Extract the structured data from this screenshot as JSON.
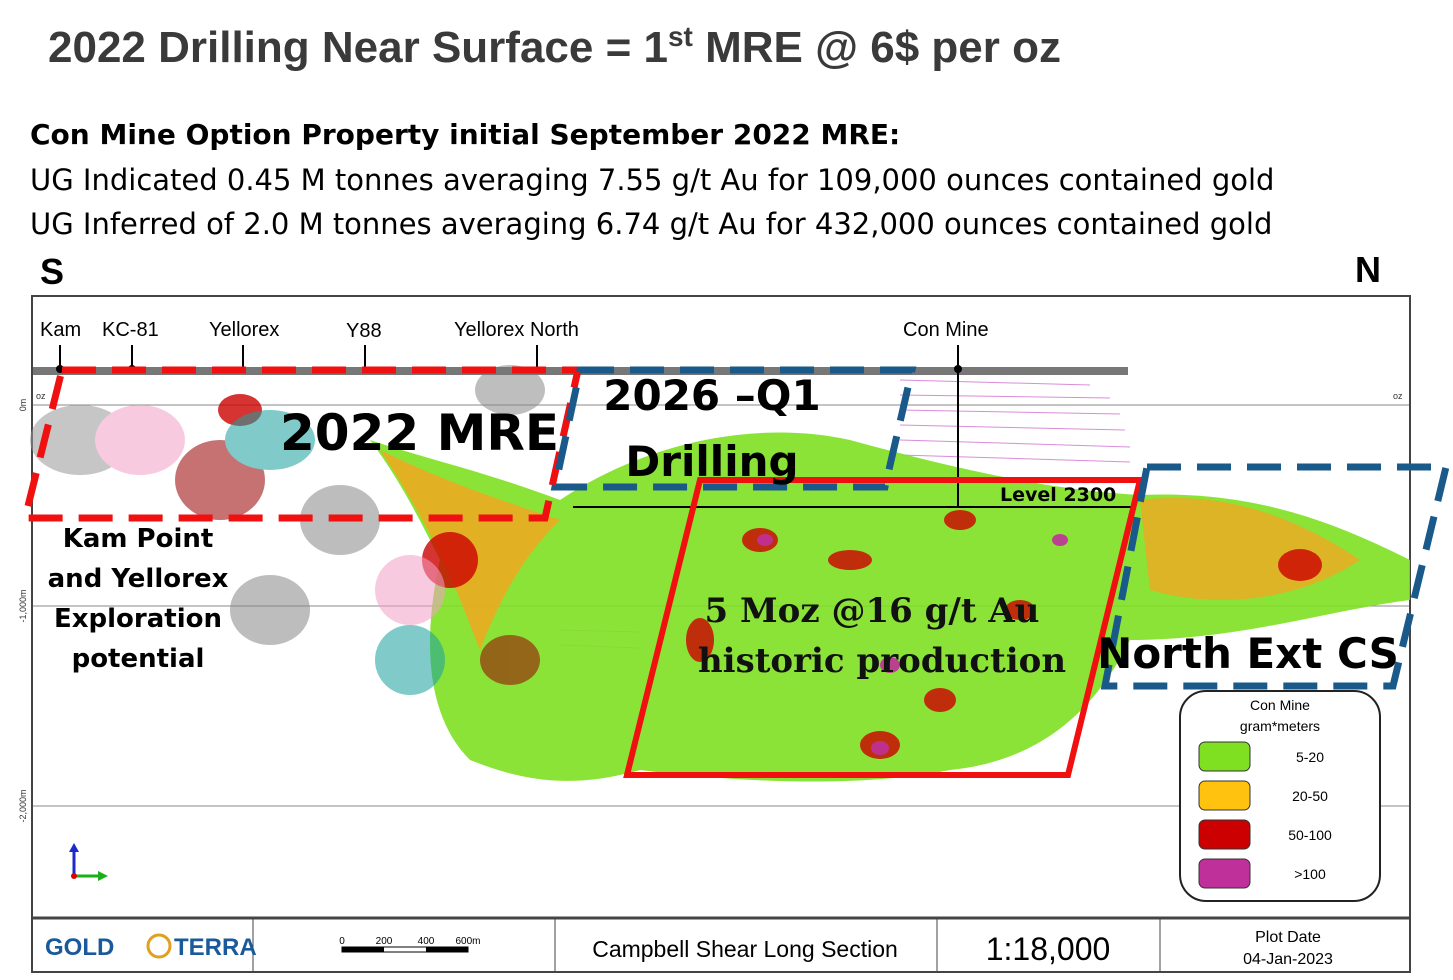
{
  "header": {
    "title": [
      "2022 Drilling Near Surface = 1",
      "st",
      " MRE @ 6$ per oz"
    ],
    "summary_heading": "Con Mine Option Property initial September 2022 MRE:",
    "summary_lines": [
      "UG Indicated 0.45 M tonnes averaging 7.55 g/t Au for 109,000 ounces contained gold",
      "UG Inferred of 2.0 M tonnes averaging 6.74 g/t Au for 432,000 ounces contained gold"
    ]
  },
  "section": {
    "compass_left": "S",
    "compass_right": "N",
    "locations": [
      "Kam",
      "KC-81",
      "Yellorex",
      "Y88",
      "Yellorex North",
      "Con Mine"
    ],
    "depth_labels": [
      "0m",
      "-1,000m",
      "-2,000m"
    ],
    "unit_labels": [
      "oz",
      "oz"
    ],
    "annotations": {
      "mre_2022": "2022 MRE",
      "drilling_2026": [
        "2026 –Q1",
        "Drilling"
      ],
      "level": "Level 2300",
      "exploration": [
        "Kam Point",
        "and Yellorex",
        "Exploration",
        "potential"
      ],
      "historic": [
        "5 Moz @16 g/t Au",
        "historic production"
      ],
      "north_ext": "North Ext CS"
    },
    "legend": {
      "title": [
        "Con Mine",
        "gram*meters"
      ],
      "items": [
        {
          "label": "5-20",
          "color": "#7fe022"
        },
        {
          "label": "20-50",
          "color": "#ffc20e"
        },
        {
          "label": "50-100",
          "color": "#cc0000"
        },
        {
          "label": ">100",
          "color": "#c0309a"
        }
      ]
    }
  },
  "footer": {
    "logo": [
      "GOLD",
      "TERRA"
    ],
    "scale_labels": [
      "0",
      "200",
      "400",
      "600m"
    ],
    "section_name": "Campbell Shear Long Section",
    "scale_ratio": "1:18,000",
    "plot_date_label": "Plot Date",
    "plot_date": "04-Jan-2023"
  }
}
